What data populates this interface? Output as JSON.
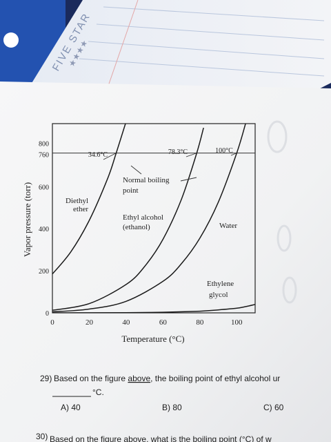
{
  "notebook": {
    "brand": "FIVE STAR",
    "stars": "★★★★"
  },
  "chart_data": {
    "type": "line",
    "title": "",
    "xlabel": "Temperature (°C)",
    "ylabel": "Vapor pressure (torr)",
    "xlim": [
      0,
      110
    ],
    "ylim": [
      0,
      900
    ],
    "xticks": [
      "0",
      "20",
      "40",
      "60",
      "80",
      "100"
    ],
    "yticks": [
      "0",
      "200",
      "400",
      "600",
      "760",
      "800"
    ],
    "series": [
      {
        "name": "Diethyl ether",
        "points": [
          [
            0,
            185
          ],
          [
            10,
            290
          ],
          [
            20,
            440
          ],
          [
            30,
            640
          ],
          [
            34.6,
            760
          ],
          [
            40,
            910
          ]
        ]
      },
      {
        "name": "Ethyl alcohol (ethanol)",
        "points": [
          [
            0,
            12
          ],
          [
            20,
            44
          ],
          [
            40,
            135
          ],
          [
            50,
            220
          ],
          [
            60,
            350
          ],
          [
            70,
            540
          ],
          [
            78.3,
            760
          ],
          [
            82,
            880
          ]
        ]
      },
      {
        "name": "Water",
        "points": [
          [
            0,
            5
          ],
          [
            20,
            18
          ],
          [
            40,
            55
          ],
          [
            60,
            150
          ],
          [
            70,
            234
          ],
          [
            80,
            355
          ],
          [
            90,
            526
          ],
          [
            100,
            760
          ],
          [
            105,
            906
          ]
        ]
      },
      {
        "name": "Ethylene glycol",
        "points": [
          [
            0,
            0
          ],
          [
            40,
            1
          ],
          [
            60,
            3
          ],
          [
            80,
            8
          ],
          [
            90,
            14
          ],
          [
            100,
            22
          ],
          [
            105,
            30
          ],
          [
            110,
            40
          ]
        ]
      }
    ],
    "annotations": {
      "ether_bp": "34.6°C",
      "ethanol_bp": "78.3°C",
      "water_bp": "100°C",
      "normal_bp_line1": "Normal boiling",
      "normal_bp_line2": "point",
      "ether_line1": "Diethyl",
      "ether_line2": "ether",
      "ethanol_line1": "Ethyl alcohol",
      "ethanol_line2": "(ethanol)",
      "water": "Water",
      "glycol_line1": "Ethylene",
      "glycol_line2": "glycol"
    },
    "grid": false,
    "reference_line": 760
  },
  "questions": [
    {
      "number": "29)",
      "text_prefix": "Based on the figure",
      "text_underlined": "above",
      "text_suffix": ", the boiling point of ethyl alcohol ur",
      "blank_unit": "°C.",
      "choices": [
        "A) 40",
        "B) 80",
        "C) 60"
      ]
    },
    {
      "number": "30)",
      "text": "Based on the figure above, what is the boiling point (°C) of w"
    }
  ],
  "colors": {
    "desk": "#1a2a5c",
    "paper": "#f4f4f4",
    "notebook": "#e9edf5",
    "ink": "#1e1e1e"
  }
}
